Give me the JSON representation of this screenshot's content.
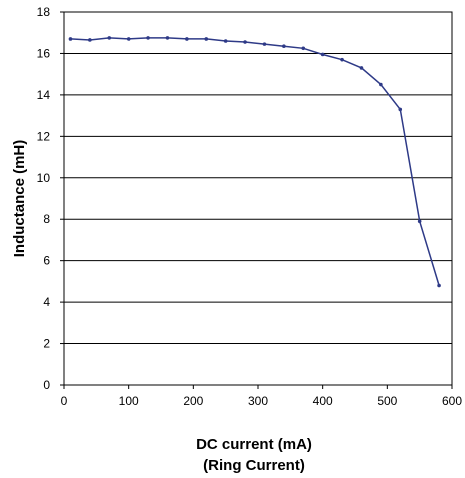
{
  "chart_data": {
    "type": "line",
    "title": "",
    "xlabel": "DC current (mA)",
    "xlabel_sub": "(Ring Current)",
    "ylabel": "Inductance (mH)",
    "xlim": [
      0,
      600
    ],
    "ylim": [
      0,
      18
    ],
    "xticks": [
      0,
      100,
      200,
      300,
      400,
      500,
      600
    ],
    "yticks": [
      0,
      2,
      4,
      6,
      8,
      10,
      12,
      14,
      16,
      18
    ],
    "grid": "horizontal",
    "legend": "none",
    "series": [
      {
        "color": "#2e3a87",
        "x": [
          10,
          40,
          70,
          100,
          130,
          160,
          190,
          220,
          250,
          280,
          310,
          340,
          370,
          400,
          430,
          460,
          490,
          520,
          550,
          580
        ],
        "y": [
          16.7,
          16.65,
          16.75,
          16.7,
          16.75,
          16.75,
          16.7,
          16.7,
          16.6,
          16.55,
          16.45,
          16.35,
          16.25,
          15.95,
          15.7,
          15.3,
          14.5,
          13.3,
          7.9,
          4.8
        ]
      }
    ]
  }
}
